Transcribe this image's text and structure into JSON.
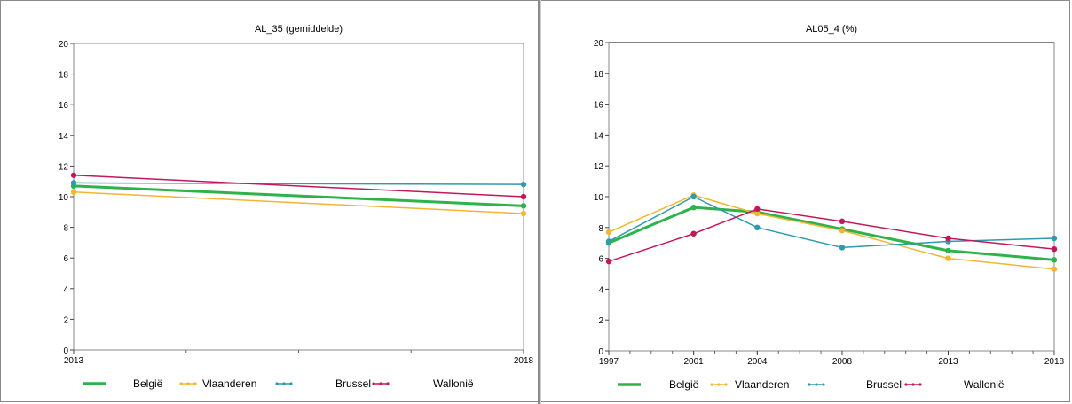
{
  "chart_data": [
    {
      "type": "line",
      "title": "AL_35  (gemiddelde)",
      "x": [
        "2013",
        "2018"
      ],
      "ylim": [
        0,
        20
      ],
      "yticks": [
        0,
        2,
        4,
        6,
        8,
        10,
        12,
        14,
        16,
        18,
        20
      ],
      "grid": false,
      "legend_position": "bottom",
      "series": [
        {
          "name": "België",
          "color": "#2db34a",
          "values": [
            10.7,
            9.4
          ]
        },
        {
          "name": "Vlaanderen",
          "color": "#f2b632",
          "values": [
            10.3,
            8.9
          ]
        },
        {
          "name": "Brussel",
          "color": "#2e9aad",
          "values": [
            10.9,
            10.8
          ]
        },
        {
          "name": "Wallonië",
          "color": "#c2185b",
          "values": [
            11.4,
            10.0
          ]
        }
      ]
    },
    {
      "type": "line",
      "title": "AL05_4  (%)",
      "x": [
        "1997",
        "2001",
        "2004",
        "2008",
        "2013",
        "2018"
      ],
      "x_numeric": [
        1997,
        2001,
        2004,
        2008,
        2013,
        2018
      ],
      "ylim": [
        0,
        20
      ],
      "yticks": [
        0,
        2,
        4,
        6,
        8,
        10,
        12,
        14,
        16,
        18,
        20
      ],
      "grid": false,
      "legend_position": "bottom",
      "series": [
        {
          "name": "België",
          "color": "#2db34a",
          "values": [
            7.0,
            9.3,
            9.0,
            7.9,
            6.5,
            5.9
          ]
        },
        {
          "name": "Vlaanderen",
          "color": "#f2b632",
          "values": [
            7.7,
            10.1,
            8.9,
            7.8,
            6.0,
            5.3
          ]
        },
        {
          "name": "Brussel",
          "color": "#2e9aad",
          "values": [
            7.1,
            10.0,
            8.0,
            6.7,
            7.1,
            7.3
          ]
        },
        {
          "name": "Wallonië",
          "color": "#c2185b",
          "values": [
            5.8,
            7.6,
            9.2,
            8.4,
            7.3,
            6.6
          ]
        }
      ]
    }
  ]
}
